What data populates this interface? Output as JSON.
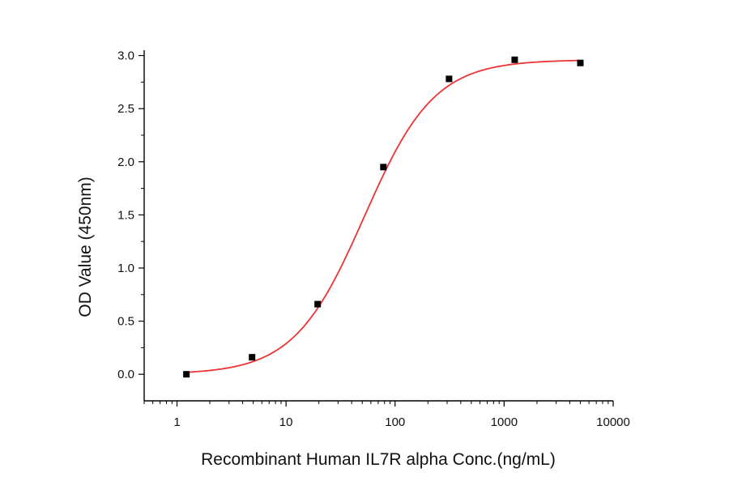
{
  "chart_data": {
    "type": "scatter",
    "title": "",
    "xlabel": "Recombinant Human IL7R alpha Conc.(ng/mL)",
    "ylabel": "OD Value (450nm)",
    "x_scale": "log",
    "xlim": [
      0.5,
      10000
    ],
    "ylim": [
      -0.25,
      3.05
    ],
    "x_ticks": [
      1,
      10,
      100,
      1000,
      10000
    ],
    "x_tick_labels": [
      "1",
      "10",
      "100",
      "1000",
      "10000"
    ],
    "y_ticks": [
      0,
      0.5,
      1,
      1.5,
      2,
      2.5,
      3
    ],
    "y_tick_labels": [
      "0.0",
      "0.5",
      "1.0",
      "1.5",
      "2.0",
      "2.5",
      "3.0"
    ],
    "grid": false,
    "legend": "none",
    "series": [
      {
        "marker": "square",
        "color": "#000000",
        "x": [
          1.22,
          4.88,
          19.5,
          78.1,
          312.5,
          1250,
          5000
        ],
        "y": [
          0.0,
          0.16,
          0.66,
          1.95,
          2.78,
          2.96,
          2.93
        ]
      }
    ],
    "fit": {
      "type": "4PL",
      "color": "#ee3333",
      "bottom": 0.0,
      "top": 2.96,
      "ec50": 52,
      "hill": 1.35
    }
  }
}
